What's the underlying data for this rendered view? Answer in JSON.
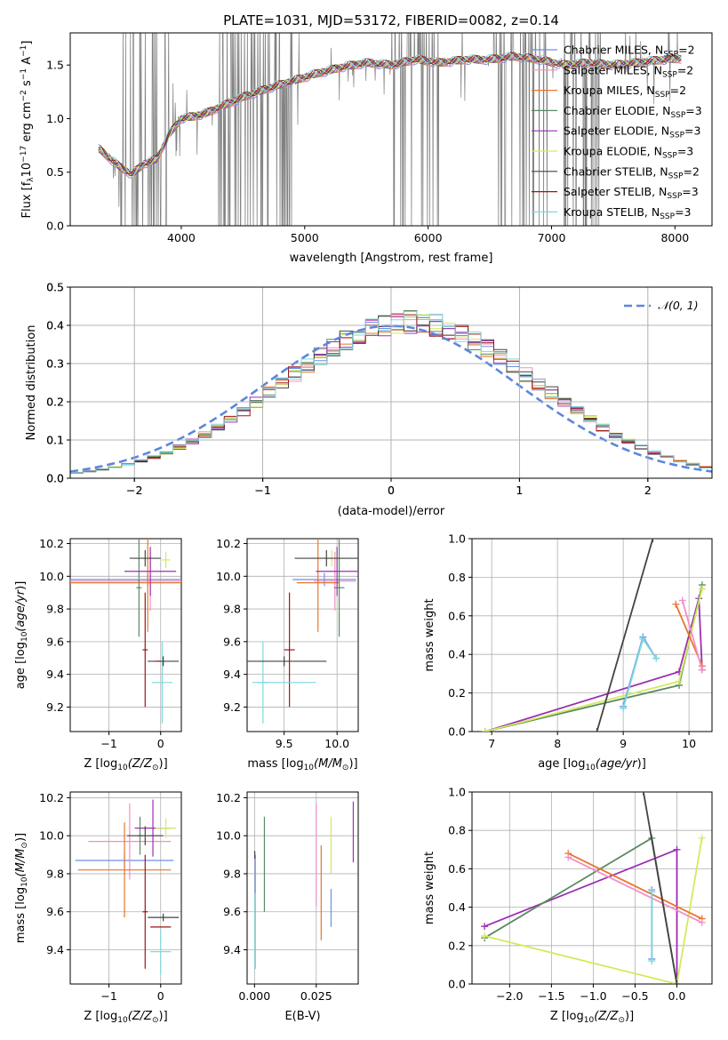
{
  "figure": {
    "title": "PLATE=1031, MJD=53172, FIBERID=0082, z=0.14"
  },
  "series": [
    {
      "name": "Chabrier MILES",
      "nssp": "2",
      "color": "#6b8fe6"
    },
    {
      "name": "Salpeter MILES",
      "nssp": "2",
      "color": "#f28fc9"
    },
    {
      "name": "Kroupa MILES",
      "nssp": "2",
      "color": "#e8762b"
    },
    {
      "name": "Chabrier ELODIE",
      "nssp": "3",
      "color": "#5a8a60"
    },
    {
      "name": "Salpeter ELODIE",
      "nssp": "3",
      "color": "#9b2fb5"
    },
    {
      "name": "Kroupa ELODIE",
      "nssp": "3",
      "color": "#d4ea5c"
    },
    {
      "name": "Chabrier STELIB",
      "nssp": "2",
      "color": "#444444"
    },
    {
      "name": "Salpeter STELIB",
      "nssp": "3",
      "color": "#a01515"
    },
    {
      "name": "Kroupa STELIB",
      "nssp": "3",
      "color": "#7fd8dc"
    }
  ],
  "chart_data": [
    {
      "id": "spectrum",
      "type": "line",
      "xlabel": "wavelength [Angstrom, rest frame]",
      "ylabel": "Flux [f",
      "xlim": [
        3100,
        8300
      ],
      "ylim": [
        0,
        1.8
      ],
      "xticks": [
        4000,
        5000,
        6000,
        7000,
        8000
      ],
      "yticks": [
        0.0,
        0.5,
        1.0,
        1.5
      ],
      "grid": false,
      "legend": "right",
      "continuum": {
        "x": [
          3330,
          3400,
          3500,
          3600,
          3700,
          3800,
          3900,
          4000,
          4100,
          4200,
          4300,
          4500,
          4700,
          4900,
          5100,
          5300,
          5500,
          5700,
          5900,
          6100,
          6300,
          6500,
          6700,
          6900,
          7100,
          7300,
          7500,
          7700,
          7900,
          8050
        ],
        "y": [
          0.72,
          0.65,
          0.55,
          0.48,
          0.58,
          0.62,
          0.85,
          1.0,
          1.02,
          1.05,
          1.1,
          1.2,
          1.28,
          1.35,
          1.42,
          1.48,
          1.52,
          1.5,
          1.55,
          1.52,
          1.55,
          1.55,
          1.58,
          1.55,
          1.5,
          1.52,
          1.5,
          1.52,
          1.55,
          1.56
        ]
      }
    },
    {
      "id": "residuals",
      "type": "step",
      "xlabel": "(data-model)/error",
      "ylabel": "Normed distribution",
      "xlim": [
        -2.5,
        2.5
      ],
      "ylim": [
        0,
        0.5
      ],
      "xticks": [
        -2,
        -1,
        0,
        1,
        2
      ],
      "yticks": [
        0.0,
        0.1,
        0.2,
        0.3,
        0.4,
        0.5
      ],
      "grid": true,
      "legend": "top-right",
      "gauss_label": "𝒩(0, 1)",
      "bin_width": 0.1
    },
    {
      "id": "age_vs_Z",
      "type": "scatter",
      "xlabel": "Z [log",
      "ylabel": "age  [log",
      "xlim": [
        -1.75,
        0.4
      ],
      "ylim": [
        9.05,
        10.23
      ],
      "xticks": [
        -1,
        0
      ],
      "yticks": [
        9.2,
        9.4,
        9.6,
        9.8,
        10.0,
        10.2
      ],
      "grid": true,
      "points": [
        {
          "s": 0,
          "x": -0.25,
          "y": 9.98,
          "xe": 1.5,
          "ye": 0.04
        },
        {
          "s": 1,
          "x": -0.2,
          "y": 9.97,
          "xe": 1.55,
          "ye": 0.18
        },
        {
          "s": 2,
          "x": -0.25,
          "y": 9.96,
          "xe": 1.6,
          "ye": 0.3
        },
        {
          "s": 3,
          "x": -0.42,
          "y": 9.93,
          "xe": 0.05,
          "ye": 0.3
        },
        {
          "s": 4,
          "x": -0.2,
          "y": 10.03,
          "xe": 0.5,
          "ye": 0.15
        },
        {
          "s": 5,
          "x": 0.1,
          "y": 10.1,
          "xe": 0.08,
          "ye": 0.05
        },
        {
          "s": 6,
          "x": -0.3,
          "y": 10.11,
          "xe": 0.3,
          "ye": 0.05
        },
        {
          "s": 7,
          "x": -0.3,
          "y": 9.55,
          "xe": 0.05,
          "ye": 0.35
        },
        {
          "s": 8,
          "x": 0.03,
          "y": 9.35,
          "xe": 0.2,
          "ye": 0.25
        },
        {
          "s": 6,
          "x": 0.05,
          "y": 9.48,
          "xe": 0.3,
          "ye": 0.03
        },
        {
          "s": 7,
          "x": -0.05,
          "y": 9.48,
          "xe": 0.05,
          "ye": 0.0
        }
      ]
    },
    {
      "id": "age_vs_mass",
      "type": "scatter",
      "xlabel": "mass [log",
      "ylabel": "",
      "xlim": [
        9.15,
        10.2
      ],
      "ylim": [
        9.05,
        10.23
      ],
      "xticks": [
        9.5,
        10.0
      ],
      "yticks": [
        9.2,
        9.4,
        9.6,
        9.8,
        10.0,
        10.2
      ],
      "grid": true,
      "points": [
        {
          "s": 0,
          "x": 9.88,
          "y": 9.98,
          "xe": 0.3,
          "ye": 0.04
        },
        {
          "s": 1,
          "x": 9.98,
          "y": 9.97,
          "xe": 0.2,
          "ye": 0.18
        },
        {
          "s": 2,
          "x": 9.82,
          "y": 9.96,
          "xe": 0.2,
          "ye": 0.3
        },
        {
          "s": 3,
          "x": 10.02,
          "y": 9.93,
          "xe": 0.05,
          "ye": 0.3
        },
        {
          "s": 4,
          "x": 10.0,
          "y": 10.03,
          "xe": 0.2,
          "ye": 0.15
        },
        {
          "s": 5,
          "x": 9.95,
          "y": 10.11,
          "xe": 0.2,
          "ye": 0.05
        },
        {
          "s": 6,
          "x": 9.9,
          "y": 10.11,
          "xe": 0.3,
          "ye": 0.05
        },
        {
          "s": 7,
          "x": 9.55,
          "y": 9.55,
          "xe": 0.05,
          "ye": 0.35
        },
        {
          "s": 8,
          "x": 9.3,
          "y": 9.35,
          "xe": 0.05,
          "ye": 0.25
        },
        {
          "s": 6,
          "x": 9.5,
          "y": 9.48,
          "xe": 0.4,
          "ye": 0.03
        },
        {
          "s": 8,
          "x": 9.5,
          "y": 9.35,
          "xe": 0.3,
          "ye": 0.0
        }
      ]
    },
    {
      "id": "weight_vs_age",
      "type": "line",
      "xlabel": "age  [log",
      "ylabel": "mass weight",
      "xlim": [
        6.7,
        10.35
      ],
      "ylim": [
        0,
        1.0
      ],
      "xticks": [
        7,
        8,
        9,
        10
      ],
      "yticks": [
        0.0,
        0.2,
        0.4,
        0.6,
        0.8,
        1.0
      ],
      "grid": true,
      "lines": [
        {
          "s": 4,
          "x": [
            6.9,
            9.85,
            10.15,
            10.2
          ],
          "y": [
            0.0,
            0.31,
            0.69,
            0.32
          ]
        },
        {
          "s": 3,
          "x": [
            6.9,
            9.85,
            10.2
          ],
          "y": [
            0.0,
            0.24,
            0.76
          ]
        },
        {
          "s": 5,
          "x": [
            6.9,
            9.85,
            10.2
          ],
          "y": [
            0.0,
            0.26,
            0.74
          ]
        },
        {
          "s": 2,
          "x": [
            9.8,
            10.2
          ],
          "y": [
            0.66,
            0.34
          ]
        },
        {
          "s": 1,
          "x": [
            9.9,
            10.2
          ],
          "y": [
            0.68,
            0.32
          ]
        },
        {
          "s": 0,
          "x": [
            9.0,
            9.3,
            9.5
          ],
          "y": [
            0.13,
            0.49,
            0.38
          ]
        },
        {
          "s": 8,
          "x": [
            9.0,
            9.3,
            9.5
          ],
          "y": [
            0.12,
            0.48,
            0.38
          ]
        },
        {
          "s": 6,
          "x": [
            8.6,
            9.45
          ],
          "y": [
            0.0,
            1.0
          ]
        }
      ]
    },
    {
      "id": "mass_vs_Z",
      "type": "scatter",
      "xlabel": "Z [log",
      "ylabel": "mass [log",
      "xlim": [
        -1.75,
        0.4
      ],
      "ylim": [
        9.22,
        10.23
      ],
      "xticks": [
        -1,
        0
      ],
      "yticks": [
        9.4,
        9.6,
        9.8,
        10.0,
        10.2
      ],
      "grid": true,
      "points": [
        {
          "s": 0,
          "x": -0.7,
          "y": 9.87,
          "xe": 0.95,
          "ye": 0.04
        },
        {
          "s": 1,
          "x": -0.6,
          "y": 9.97,
          "xe": 0.8,
          "ye": 0.2
        },
        {
          "s": 2,
          "x": -0.7,
          "y": 9.82,
          "xe": 0.9,
          "ye": 0.25
        },
        {
          "s": 3,
          "x": -0.4,
          "y": 10.0,
          "xe": 0.05,
          "ye": 0.1
        },
        {
          "s": 4,
          "x": -0.15,
          "y": 10.04,
          "xe": 0.35,
          "ye": 0.15
        },
        {
          "s": 5,
          "x": 0.1,
          "y": 10.04,
          "xe": 0.2,
          "ye": 0.05
        },
        {
          "s": 6,
          "x": -0.3,
          "y": 10.0,
          "xe": 0.35,
          "ye": 0.05
        },
        {
          "s": 7,
          "x": -0.3,
          "y": 9.6,
          "xe": 0.05,
          "ye": 0.3
        },
        {
          "s": 8,
          "x": 0.0,
          "y": 9.39,
          "xe": 0.2,
          "ye": 0.12
        },
        {
          "s": 6,
          "x": 0.05,
          "y": 9.57,
          "xe": 0.3,
          "ye": 0.02
        },
        {
          "s": 7,
          "x": 0.0,
          "y": 9.52,
          "xe": 0.2,
          "ye": 0.0
        }
      ]
    },
    {
      "id": "mass_vs_EBV",
      "type": "scatter",
      "xlabel": "E(B-V)",
      "ylabel": "",
      "xlim": [
        -0.003,
        0.042
      ],
      "ylim": [
        9.22,
        10.23
      ],
      "xticks": [
        0.0,
        0.025
      ],
      "tick_labels": [
        "0.000",
        "0.025"
      ],
      "yticks": [
        9.4,
        9.6,
        9.8,
        10.0,
        10.2
      ],
      "grid": true,
      "points": [
        {
          "s": 0,
          "x": 0.0003,
          "y": 9.6,
          "ye": 0.3
        },
        {
          "s": 8,
          "x": 0.0002,
          "y": 9.5,
          "ye": 0.2
        },
        {
          "s": 6,
          "x": 0.0001,
          "y": 9.9,
          "ye": 0.02
        },
        {
          "s": 3,
          "x": 0.004,
          "y": 9.85,
          "ye": 0.25
        },
        {
          "s": 1,
          "x": 0.025,
          "y": 9.9,
          "ye": 0.27
        },
        {
          "s": 2,
          "x": 0.027,
          "y": 9.7,
          "ye": 0.25
        },
        {
          "s": 5,
          "x": 0.031,
          "y": 9.95,
          "ye": 0.15
        },
        {
          "s": 0,
          "x": 0.031,
          "y": 9.62,
          "ye": 0.1
        },
        {
          "s": 4,
          "x": 0.04,
          "y": 10.02,
          "ye": 0.16
        }
      ]
    },
    {
      "id": "weight_vs_Z",
      "type": "line",
      "xlabel": "Z [log",
      "ylabel": "mass weight",
      "xlim": [
        -2.45,
        0.42
      ],
      "ylim": [
        0,
        1.0
      ],
      "xticks": [
        -2.0,
        -1.5,
        -1.0,
        -0.5,
        0.0
      ],
      "yticks": [
        0.0,
        0.2,
        0.4,
        0.6,
        0.8,
        1.0
      ],
      "grid": true,
      "lines": [
        {
          "s": 4,
          "x": [
            -2.3,
            0.0,
            0.0
          ],
          "y": [
            0.3,
            0.7,
            0.0
          ]
        },
        {
          "s": 3,
          "x": [
            -2.3,
            -0.3,
            0.0
          ],
          "y": [
            0.24,
            0.76,
            0.0
          ]
        },
        {
          "s": 5,
          "x": [
            -2.3,
            0.0,
            0.3
          ],
          "y": [
            0.25,
            0.0,
            0.76
          ]
        },
        {
          "s": 2,
          "x": [
            -1.3,
            0.3
          ],
          "y": [
            0.68,
            0.34
          ]
        },
        {
          "s": 1,
          "x": [
            -1.3,
            0.3
          ],
          "y": [
            0.66,
            0.32
          ]
        },
        {
          "s": 0,
          "x": [
            -0.3,
            -0.3
          ],
          "y": [
            0.13,
            0.49
          ]
        },
        {
          "s": 8,
          "x": [
            -0.3,
            -0.3
          ],
          "y": [
            0.12,
            0.48
          ]
        },
        {
          "s": 6,
          "x": [
            -0.4,
            0.0
          ],
          "y": [
            1.0,
            0.0
          ]
        }
      ]
    }
  ]
}
